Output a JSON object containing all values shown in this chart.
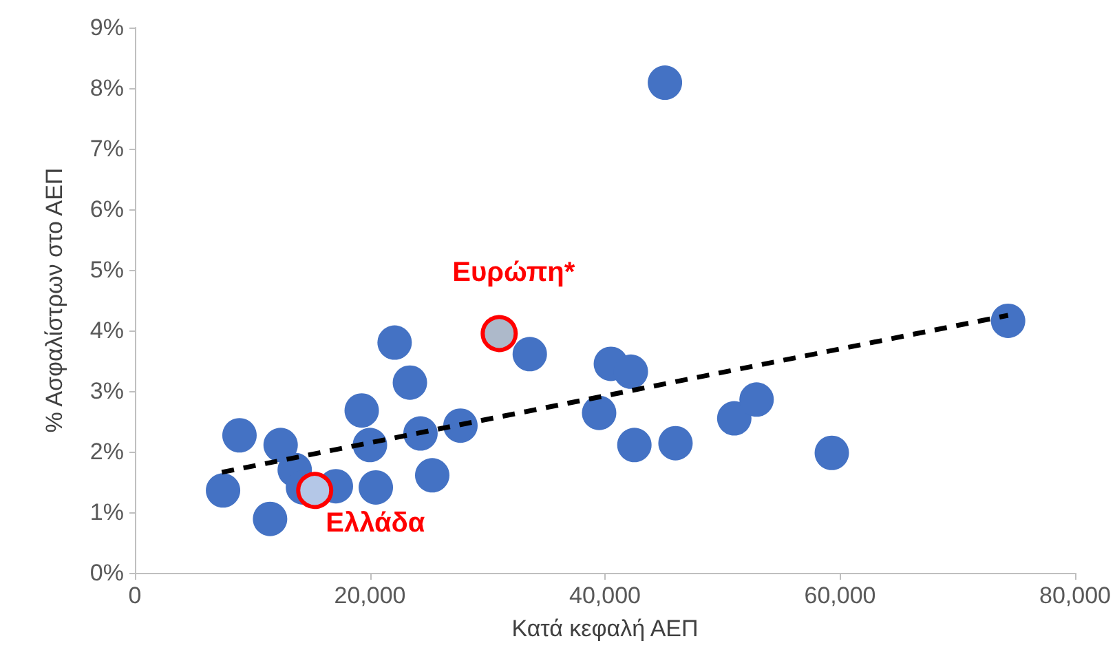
{
  "chart_data": {
    "type": "scatter",
    "xlabel": "Κατά κεφαλή ΑΕΠ",
    "ylabel": "% Ασφαλίστρων στο ΑΕΠ",
    "marker": "circle",
    "grid": false,
    "xlim": [
      0,
      80000
    ],
    "xticks": [
      {
        "value": 0,
        "label": "0"
      },
      {
        "value": 20000,
        "label": "20,000"
      },
      {
        "value": 40000,
        "label": "40,000"
      },
      {
        "value": 60000,
        "label": "60,000"
      },
      {
        "value": 80000,
        "label": "80,000"
      }
    ],
    "ylim": [
      0,
      9
    ],
    "yticks": [
      {
        "value": 0,
        "label": "0%"
      },
      {
        "value": 1,
        "label": "1%"
      },
      {
        "value": 2,
        "label": "2%"
      },
      {
        "value": 3,
        "label": "3%"
      },
      {
        "value": 4,
        "label": "4%"
      },
      {
        "value": 5,
        "label": "5%"
      },
      {
        "value": 6,
        "label": "6%"
      },
      {
        "value": 7,
        "label": "7%"
      },
      {
        "value": 8,
        "label": "8%"
      },
      {
        "value": 9,
        "label": "9%"
      }
    ],
    "series": [
      {
        "type": "scatter",
        "color": "#4472c4",
        "x": [
          7500,
          8900,
          11500,
          12400,
          13600,
          14300,
          17100,
          19300,
          20000,
          20500,
          22100,
          23400,
          24300,
          25300,
          27700,
          33600,
          39500,
          40500,
          42200,
          42500,
          45100,
          46000,
          51000,
          52900,
          59300,
          74300
        ],
        "values": [
          1.36,
          2.27,
          0.89,
          2.11,
          1.7,
          1.41,
          1.43,
          2.68,
          2.11,
          1.41,
          3.8,
          3.14,
          2.3,
          1.61,
          2.43,
          3.61,
          2.64,
          3.45,
          3.32,
          2.11,
          8.09,
          2.14,
          2.55,
          2.86,
          1.98,
          4.16
        ]
      },
      {
        "type": "line",
        "color": "#000000",
        "line_style": "dashed",
        "marker": "none",
        "x": [
          7400,
          74300
        ],
        "values": [
          1.66,
          4.25
        ]
      },
      {
        "type": "scatter",
        "color": "#b4c7e7",
        "x": [
          15300
        ],
        "values": [
          1.36
        ]
      },
      {
        "type": "scatter",
        "color": "#adb9ca",
        "x": [
          31000
        ],
        "values": [
          3.95
        ]
      }
    ],
    "annotations": [
      {
        "text": "Ελλάδα",
        "x": 15300,
        "y": 1.36
      },
      {
        "text": "Ευρώπη*",
        "x": 31000,
        "y": 3.95
      }
    ]
  }
}
